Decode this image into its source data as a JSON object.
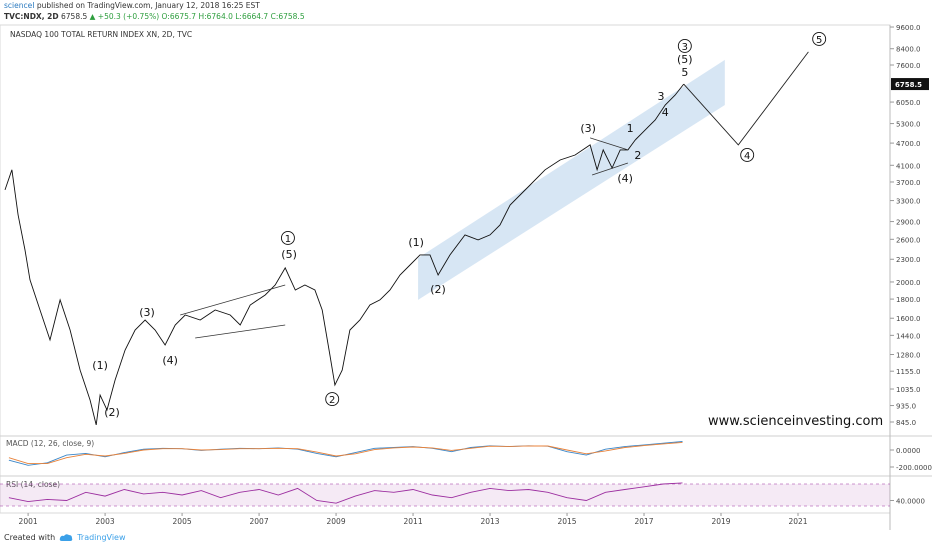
{
  "header": {
    "author": "scienceI",
    "published": "published on TradingView.com, January 12, 2018 16:25 EST",
    "symbol": "TVC:NDX, 2D",
    "price": "6758.5",
    "change": "▲ +50.3 (+0.75%)",
    "ohlc": "O:6675.7 H:6764.0 L:6664.7 C:6758.5"
  },
  "watermark": "www.scienceinvesting.com",
  "footer": {
    "created": "Created with",
    "brand": "TradingView"
  },
  "chart_data": [
    {
      "type": "line",
      "title": "NASDAQ 100 TOTAL RETURN INDEX XN, 2D, TVC",
      "log_scale": true,
      "color": "#111111",
      "xlim": [
        2000.27,
        2023.39
      ],
      "xticks": [
        {
          "value": 2001,
          "label": "2001"
        },
        {
          "value": 2003,
          "label": "2003"
        },
        {
          "value": 2005,
          "label": "2005"
        },
        {
          "value": 2007,
          "label": "2007"
        },
        {
          "value": 2009,
          "label": "2009"
        },
        {
          "value": 2011,
          "label": "2011"
        },
        {
          "value": 2013,
          "label": "2013"
        },
        {
          "value": 2015,
          "label": "2015"
        },
        {
          "value": 2017,
          "label": "2017"
        },
        {
          "value": 2019,
          "label": "2019"
        },
        {
          "value": 2021,
          "label": "2021"
        }
      ],
      "ylim": [
        780,
        9720
      ],
      "yticks": [
        {
          "value": 9600,
          "label": "9600.0"
        },
        {
          "value": 8400,
          "label": "8400.0"
        },
        {
          "value": 7600,
          "label": "7600.0"
        },
        {
          "value": 6050,
          "label": "6050.0"
        },
        {
          "value": 5300,
          "label": "5300.0"
        },
        {
          "value": 4700,
          "label": "4700.0"
        },
        {
          "value": 4100,
          "label": "4100.0"
        },
        {
          "value": 3700,
          "label": "3700.0"
        },
        {
          "value": 3300,
          "label": "3300.0"
        },
        {
          "value": 2900,
          "label": "2900.0"
        },
        {
          "value": 2600,
          "label": "2600.0"
        },
        {
          "value": 2300,
          "label": "2300.0"
        },
        {
          "value": 2000,
          "label": "2000.0"
        },
        {
          "value": 1800,
          "label": "1800.0"
        },
        {
          "value": 1600,
          "label": "1600.0"
        },
        {
          "value": 1440,
          "label": "1440.0"
        },
        {
          "value": 1280,
          "label": "1280.0"
        },
        {
          "value": 1155,
          "label": "1155.0"
        },
        {
          "value": 1035,
          "label": "1035.0"
        },
        {
          "value": 935,
          "label": "935.0"
        },
        {
          "value": 845,
          "label": "845.0"
        }
      ],
      "x": [
        2000.4,
        2000.58,
        2000.74,
        2000.92,
        2001.05,
        2001.31,
        2001.57,
        2001.83,
        2002.09,
        2002.35,
        2002.61,
        2002.77,
        2002.87,
        2003.05,
        2003.26,
        2003.52,
        2003.78,
        2004.04,
        2004.3,
        2004.56,
        2004.82,
        2005.08,
        2005.47,
        2005.86,
        2006.25,
        2006.51,
        2006.77,
        2007.16,
        2007.42,
        2007.68,
        2007.94,
        2008.19,
        2008.45,
        2008.64,
        2008.84,
        2008.97,
        2009.16,
        2009.36,
        2009.62,
        2009.88,
        2010.14,
        2010.4,
        2010.66,
        2010.92,
        2011.18,
        2011.44,
        2011.65,
        2011.96,
        2012.35,
        2012.69,
        2013.0,
        2013.26,
        2013.52,
        2013.78,
        2014.04,
        2014.43,
        2014.82,
        2015.21,
        2015.6,
        2015.78,
        2015.94,
        2016.17,
        2016.38,
        2016.58,
        2016.77,
        2017.03,
        2017.29,
        2017.55,
        2017.81,
        2018.03
      ],
      "values": [
        3523,
        3987,
        3021,
        2435,
        2026,
        1683,
        1400,
        1791,
        1488,
        1163,
        967,
        830,
        997,
        910,
        1094,
        1316,
        1488,
        1583,
        1488,
        1357,
        1535,
        1632,
        1583,
        1683,
        1632,
        1535,
        1736,
        1846,
        1963,
        2181,
        1904,
        1963,
        1904,
        1683,
        1276,
        1061,
        1163,
        1488,
        1583,
        1736,
        1791,
        1904,
        2088,
        2220,
        2362,
        2362,
        2088,
        2362,
        2671,
        2590,
        2671,
        2840,
        3211,
        3415,
        3631,
        3987,
        4236,
        4369,
        4648,
        3987,
        4506,
        4033,
        4506,
        4506,
        4791,
        5096,
        5418,
        5943,
        6320,
        6758.5
      ],
      "channel": {
        "color": "#c6dcf0",
        "x": [
          2011.13,
          2019.1
        ],
        "upper": [
          2318,
          7841
        ],
        "lower": [
          1791,
          5943
        ]
      },
      "trendlines": [
        {
          "x": [
            2004.95,
            2007.68
          ],
          "values": [
            1632,
            1963
          ]
        },
        {
          "x": [
            2005.34,
            2007.68
          ],
          "values": [
            1417,
            1535
          ]
        },
        {
          "x": [
            2015.6,
            2016.58
          ],
          "values": [
            4852,
            4506
          ]
        },
        {
          "x": [
            2015.65,
            2016.58
          ],
          "values": [
            3863,
            4158
          ]
        }
      ],
      "projection": {
        "x": [
          2018.03,
          2019.45,
          2021.27
        ],
        "values": [
          6758.5,
          4648,
          8237
        ]
      },
      "annotations": [
        {
          "text": "(1)",
          "x": 2002.87,
          "y": 1200
        },
        {
          "text": "(2)",
          "x": 2003.18,
          "y": 898
        },
        {
          "text": "(3)",
          "x": 2004.09,
          "y": 1663
        },
        {
          "text": "(4)",
          "x": 2004.69,
          "y": 1238
        },
        {
          "text": "1",
          "x": 2007.75,
          "y": 2622,
          "circled": true
        },
        {
          "text": "(5)",
          "x": 2007.78,
          "y": 2376
        },
        {
          "text": "2",
          "x": 2008.9,
          "y": 973,
          "circled": true
        },
        {
          "text": "(1)",
          "x": 2011.08,
          "y": 2559
        },
        {
          "text": "(2)",
          "x": 2011.65,
          "y": 1915
        },
        {
          "text": "(3)",
          "x": 2015.55,
          "y": 5158
        },
        {
          "text": "(4)",
          "x": 2016.51,
          "y": 3795
        },
        {
          "text": "1",
          "x": 2016.64,
          "y": 5158
        },
        {
          "text": "2",
          "x": 2016.84,
          "y": 4369
        },
        {
          "text": "3",
          "x": 2017.44,
          "y": 6281
        },
        {
          "text": "4",
          "x": 2017.55,
          "y": 5693
        },
        {
          "text": "5",
          "x": 2018.06,
          "y": 7284
        },
        {
          "text": "(5)",
          "x": 2018.06,
          "y": 7890
        },
        {
          "text": "3",
          "x": 2018.06,
          "y": 8545,
          "circled": true
        },
        {
          "text": "4",
          "x": 2019.68,
          "y": 4369,
          "circled": true
        },
        {
          "text": "5",
          "x": 2021.55,
          "y": 8920,
          "circled": true
        }
      ]
    },
    {
      "type": "line",
      "title": "MACD (12, 26, close, 9)",
      "ylim": [
        -294,
        153
      ],
      "yticks": [
        {
          "value": 0,
          "label": "0.0000"
        },
        {
          "value": -200,
          "label": "-200.0000"
        }
      ],
      "x": [
        2000.5,
        2001.0,
        2001.5,
        2002.0,
        2002.5,
        2003.0,
        2003.5,
        2004.0,
        2004.5,
        2005.0,
        2005.5,
        2006.0,
        2006.5,
        2007.0,
        2007.5,
        2008.0,
        2008.5,
        2009.0,
        2009.5,
        2010.0,
        2010.5,
        2011.0,
        2011.5,
        2012.0,
        2012.5,
        2013.0,
        2013.5,
        2014.0,
        2014.5,
        2015.0,
        2015.5,
        2016.0,
        2016.5,
        2017.0,
        2017.5,
        2018.0
      ],
      "series": [
        {
          "color": "#3a86c8",
          "values": [
            -120,
            -180,
            -150,
            -60,
            -40,
            -80,
            -30,
            10,
            20,
            15,
            -5,
            10,
            20,
            15,
            25,
            10,
            -40,
            -80,
            -30,
            20,
            30,
            40,
            20,
            -20,
            30,
            50,
            40,
            50,
            45,
            -20,
            -60,
            10,
            40,
            60,
            80,
            100
          ]
        },
        {
          "color": "#e8823a",
          "values": [
            -90,
            -160,
            -160,
            -90,
            -50,
            -70,
            -40,
            0,
            15,
            15,
            0,
            5,
            15,
            15,
            20,
            15,
            -25,
            -70,
            -45,
            5,
            25,
            35,
            25,
            -5,
            20,
            45,
            42,
            48,
            47,
            0,
            -45,
            -10,
            30,
            52,
            72,
            90
          ]
        }
      ]
    },
    {
      "type": "line",
      "title": "RSI (14, close)",
      "ylim": [
        19,
        81
      ],
      "band": [
        30,
        70
      ],
      "yticks": [
        {
          "value": 40,
          "label": "40.0000"
        }
      ],
      "x": [
        2000.5,
        2001.0,
        2001.5,
        2002.0,
        2002.5,
        2003.0,
        2003.5,
        2004.0,
        2004.5,
        2005.0,
        2005.5,
        2006.0,
        2006.5,
        2007.0,
        2007.5,
        2008.0,
        2008.5,
        2009.0,
        2009.5,
        2010.0,
        2010.5,
        2011.0,
        2011.5,
        2012.0,
        2012.5,
        2013.0,
        2013.5,
        2014.0,
        2014.5,
        2015.0,
        2015.5,
        2016.0,
        2016.5,
        2017.0,
        2017.5,
        2018.0
      ],
      "series": [
        {
          "color": "#9c2fa0",
          "values": [
            45,
            38,
            42,
            40,
            55,
            48,
            60,
            52,
            55,
            50,
            58,
            45,
            55,
            60,
            50,
            62,
            40,
            35,
            48,
            58,
            55,
            60,
            50,
            45,
            55,
            62,
            58,
            60,
            55,
            45,
            40,
            55,
            60,
            65,
            70,
            72
          ]
        }
      ]
    }
  ]
}
